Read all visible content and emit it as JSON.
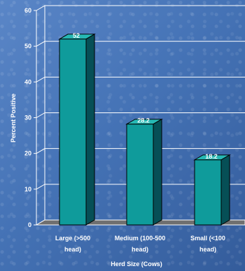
{
  "chart_data": {
    "type": "bar",
    "title": "",
    "xlabel": "Herd Size (Cows)",
    "ylabel": "Percent Positive",
    "ylim": [
      0,
      60
    ],
    "y_ticks": [
      "0",
      "10",
      "20",
      "30",
      "40",
      "50",
      "60"
    ],
    "categories": [
      [
        "Large (>500",
        "head)"
      ],
      [
        "Medium (100-500",
        "head)"
      ],
      [
        "Small (<100",
        "head)"
      ]
    ],
    "values": [
      52,
      28.2,
      18.2
    ],
    "value_labels": [
      "52",
      "28.2",
      "18.2"
    ],
    "grid": true,
    "colors": {
      "bar_front": "#0f9b9b",
      "bar_side": "#064f56",
      "bar_top": "#26b8b4",
      "floor": "#6f6f6f",
      "grid": "#ffffff"
    }
  }
}
